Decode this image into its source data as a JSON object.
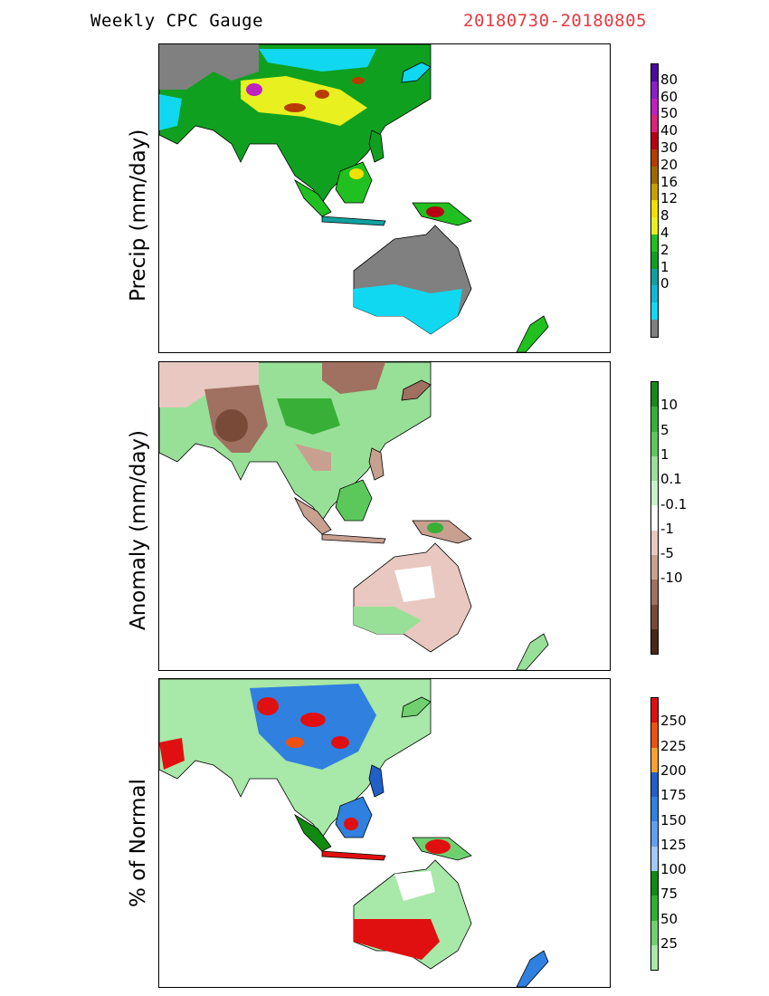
{
  "header": {
    "title": "Weekly CPC Gauge",
    "date_range": "20180730-20180805",
    "date_color": "#e8393f"
  },
  "panels": [
    {
      "id": "precip",
      "ylabel": "Precip (mm/day)",
      "colorbar": {
        "colors": [
          "#4a0a9a",
          "#8a20c8",
          "#c020c0",
          "#e0207a",
          "#b80014",
          "#b83c00",
          "#a06800",
          "#c8a000",
          "#f2e000",
          "#e8f020",
          "#20c020",
          "#10a020",
          "#10a0a0",
          "#10b8d8",
          "#10d8f0",
          "#808080"
        ],
        "ticks": [
          "80",
          "60",
          "50",
          "40",
          "30",
          "20",
          "16",
          "12",
          "8",
          "4",
          "2",
          "1",
          "0"
        ]
      }
    },
    {
      "id": "anomaly",
      "ylabel": "Anomaly (mm/day)",
      "colorbar": {
        "colors": [
          "#1a8a1a",
          "#38b038",
          "#5cc85c",
          "#98e098",
          "#c8f0c8",
          "#ffffff",
          "#e8c8c0",
          "#c8a090",
          "#a07060",
          "#7a4a38",
          "#4a2818"
        ],
        "ticks": [
          "10",
          "5",
          "1",
          "0.1",
          "-0.1",
          "-1",
          "-5",
          "-10"
        ]
      }
    },
    {
      "id": "pct",
      "ylabel": "% of Normal",
      "colorbar": {
        "colors": [
          "#e01010",
          "#f05010",
          "#f8a030",
          "#2060c8",
          "#3080e0",
          "#60a0f0",
          "#a0c8f8",
          "#108a10",
          "#30b030",
          "#70d070",
          "#a8e8a8"
        ],
        "ticks": [
          "250",
          "225",
          "200",
          "175",
          "150",
          "125",
          "100",
          "75",
          "50",
          "25"
        ]
      }
    }
  ]
}
